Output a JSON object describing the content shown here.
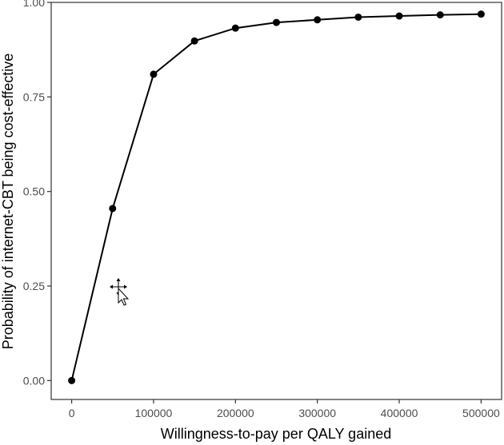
{
  "chart_data": {
    "type": "line",
    "title": "",
    "xlabel": "Willingness-to-pay per QALY gained",
    "ylabel": "Probability of internet-CBT being cost-effective",
    "x": [
      0,
      50000,
      100000,
      150000,
      200000,
      250000,
      300000,
      350000,
      400000,
      450000,
      500000
    ],
    "series": [
      {
        "values": [
          0.0,
          0.455,
          0.81,
          0.898,
          0.932,
          0.947,
          0.954,
          0.961,
          0.964,
          0.967,
          0.969
        ]
      }
    ],
    "xlim": [
      -25000,
      525000
    ],
    "ylim": [
      -0.05,
      1.0
    ],
    "x_ticks": [
      0,
      100000,
      200000,
      300000,
      400000,
      500000
    ],
    "x_tick_labels": [
      "0",
      "100000",
      "200000",
      "300000",
      "400000",
      "500000"
    ],
    "y_ticks": [
      0.0,
      0.25,
      0.5,
      0.75,
      1.0
    ],
    "y_tick_labels": [
      "0.00",
      "0.25",
      "0.50",
      "0.75",
      "1.00"
    ],
    "grid": false,
    "legend": "none",
    "colors": {
      "line": "#000000",
      "point": "#000000",
      "axis": "#333333",
      "tick_text": "#4d4d4d"
    }
  },
  "overlay": {
    "cursor_icon": "move-cursor-icon"
  }
}
